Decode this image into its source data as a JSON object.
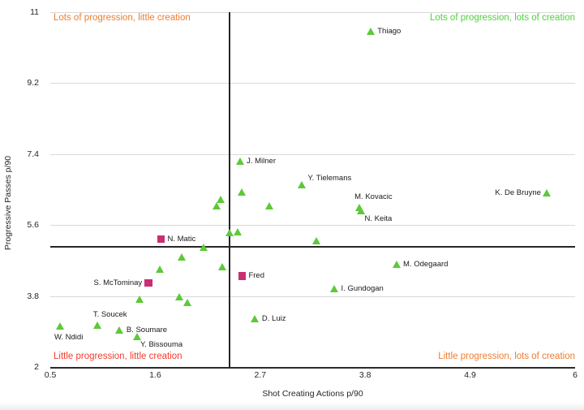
{
  "chart_data": {
    "type": "scatter",
    "xlabel": "Shot Creating Actions p/90",
    "ylabel": "Progressive Passes p/90",
    "xlim": [
      0.5,
      6
    ],
    "ylim": [
      2,
      11
    ],
    "x_ticks": [
      "0.5",
      "1.6",
      "2.7",
      "3.8",
      "4.9",
      "6"
    ],
    "y_ticks": [
      "2",
      "3.8",
      "5.6",
      "7.4",
      "9.2",
      "11"
    ],
    "grid": "horizontal-only",
    "legend": "none",
    "axis_color": "#2b2b2b",
    "gridline_color": "#d9d9d9",
    "reference_lines": {
      "x": 2.38,
      "y": 5.05,
      "color": "#262626"
    },
    "quadrant_labels": [
      {
        "position": "top-left",
        "text": "Lots of progression, little creation",
        "color": "#ef7d2e"
      },
      {
        "position": "top-right",
        "text": "Lots of progression, lots of creation",
        "color": "#4fd13c"
      },
      {
        "position": "bottom-left",
        "text": "Little progression, little creation",
        "color": "#f43b2e"
      },
      {
        "position": "bottom-right",
        "text": "Little progression, lots of creation",
        "color": "#ef7d2e"
      }
    ],
    "series": [
      {
        "marker": "triangle",
        "color": "#5dc937",
        "points": [
          {
            "x": 3.86,
            "y": 10.5,
            "label": "Thiago",
            "label_pos": "right"
          },
          {
            "x": 2.49,
            "y": 7.21,
            "label": "J. Milner",
            "label_pos": "right"
          },
          {
            "x": 3.14,
            "y": 6.62,
            "label": "Y. Tielemans",
            "label_pos": "above-right"
          },
          {
            "x": 3.74,
            "y": 6.03,
            "label": "M. Kovacic",
            "label_pos": "above"
          },
          {
            "x": 3.76,
            "y": 5.96,
            "label": "N. Keita",
            "label_pos": "below-right"
          },
          {
            "x": 5.71,
            "y": 6.41,
            "label": "K. De Bruyne",
            "label_pos": "left"
          },
          {
            "x": 4.13,
            "y": 4.6,
            "label": "M. Odegaard",
            "label_pos": "right"
          },
          {
            "x": 3.48,
            "y": 3.98,
            "label": "I. Gundogan",
            "label_pos": "right"
          },
          {
            "x": 2.65,
            "y": 3.22,
            "label": "D. Luiz",
            "label_pos": "right"
          },
          {
            "x": 1.0,
            "y": 3.06,
            "label": "T. Soucek",
            "label_pos": "above"
          },
          {
            "x": 0.61,
            "y": 3.02,
            "label": "W. Ndidi",
            "label_pos": "below"
          },
          {
            "x": 1.23,
            "y": 2.93,
            "label": "B. Soumare",
            "label_pos": "right"
          },
          {
            "x": 1.41,
            "y": 2.77,
            "label": "Y. Bissouma",
            "label_pos": "below-right"
          },
          {
            "x": 2.51,
            "y": 6.43,
            "label": ""
          },
          {
            "x": 2.29,
            "y": 6.25,
            "label": ""
          },
          {
            "x": 2.25,
            "y": 6.08,
            "label": ""
          },
          {
            "x": 2.8,
            "y": 6.08,
            "label": ""
          },
          {
            "x": 2.47,
            "y": 5.42,
            "label": ""
          },
          {
            "x": 2.38,
            "y": 5.4,
            "label": ""
          },
          {
            "x": 2.11,
            "y": 5.03,
            "label": ""
          },
          {
            "x": 3.29,
            "y": 5.19,
            "label": ""
          },
          {
            "x": 1.88,
            "y": 4.79,
            "label": ""
          },
          {
            "x": 1.65,
            "y": 4.48,
            "label": ""
          },
          {
            "x": 2.31,
            "y": 4.54,
            "label": ""
          },
          {
            "x": 1.44,
            "y": 3.71,
            "label": ""
          },
          {
            "x": 1.86,
            "y": 3.77,
            "label": ""
          },
          {
            "x": 1.94,
            "y": 3.63,
            "label": ""
          }
        ]
      },
      {
        "marker": "square",
        "color": "#cb2d72",
        "points": [
          {
            "x": 1.66,
            "y": 5.24,
            "label": "N. Matic",
            "label_pos": "right"
          },
          {
            "x": 2.51,
            "y": 4.31,
            "label": "Fred",
            "label_pos": "right"
          },
          {
            "x": 1.53,
            "y": 4.13,
            "label": "S. McTominay",
            "label_pos": "left"
          }
        ]
      }
    ]
  }
}
